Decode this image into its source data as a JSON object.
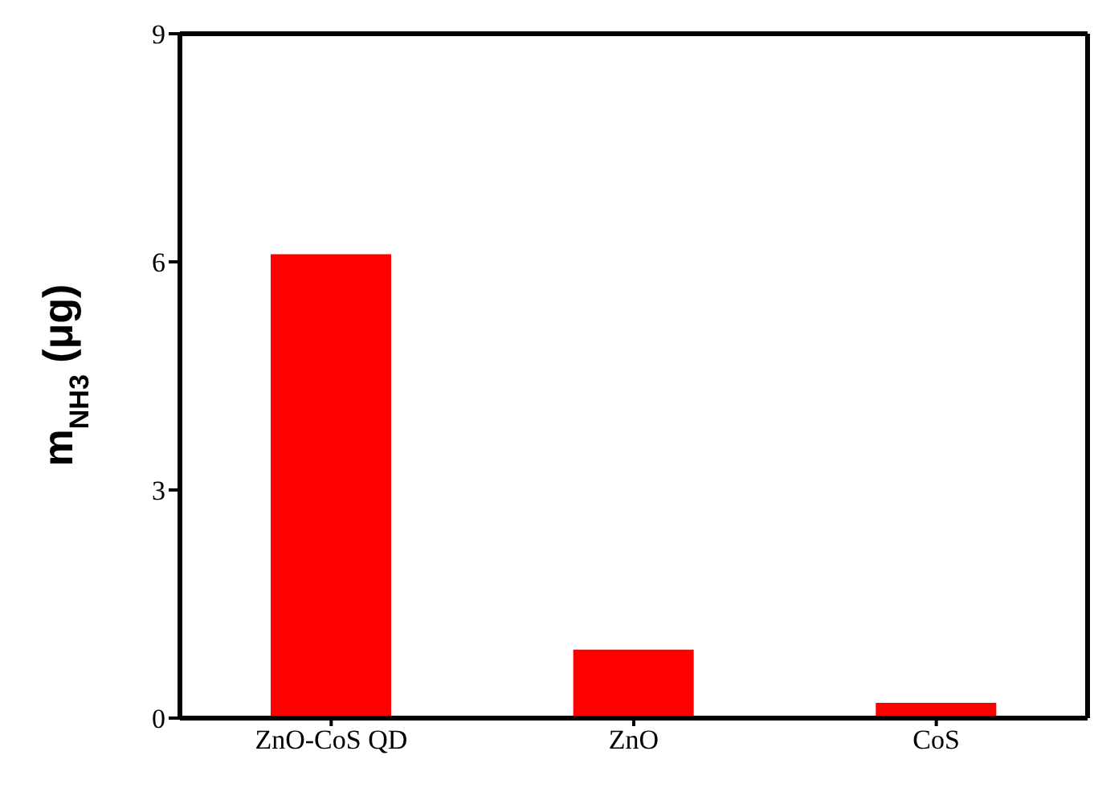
{
  "chart_data": {
    "type": "bar",
    "ylabel": "m$_{NH3}$ (μg)",
    "categories": [
      "ZnO-CoS QD",
      "ZnO",
      "CoS"
    ],
    "values": [
      6.1,
      0.9,
      0.2
    ],
    "color": "#ff0000",
    "ylim": [
      0,
      9
    ],
    "yticks": [
      0,
      3,
      6,
      9
    ]
  }
}
